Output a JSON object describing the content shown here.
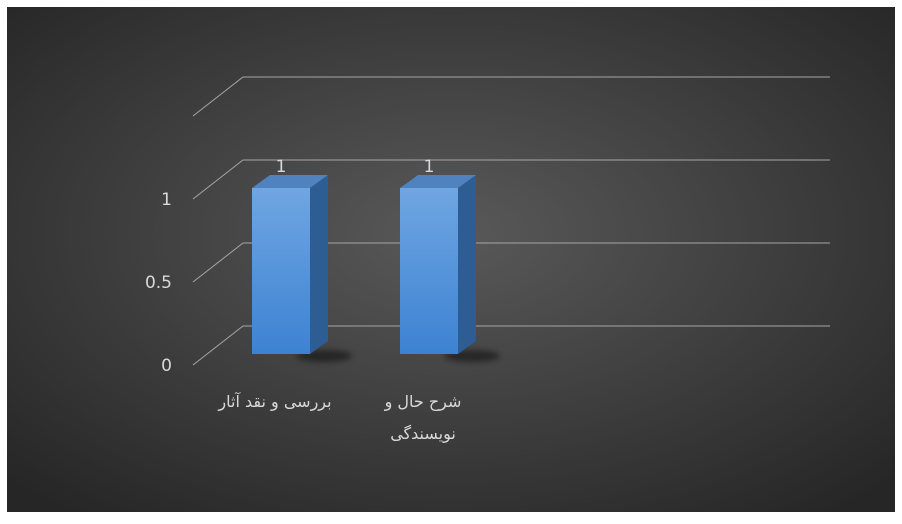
{
  "chart_data": {
    "type": "bar",
    "style": "3d-column",
    "categories": [
      [
        "بررسی و نقد آثار"
      ],
      [
        "شرح حال و",
        "نویسندگی"
      ]
    ],
    "values": [
      1,
      1
    ],
    "data_labels": [
      "1",
      "1"
    ],
    "y_ticks": [
      "0",
      "0.5",
      "1"
    ],
    "ylim": [
      0,
      1.5
    ],
    "grid": true,
    "legend": "none",
    "title": "",
    "xlabel": "",
    "ylabel": "",
    "colors": {
      "background_center": "#595959",
      "background_edge": "#262626",
      "bar_front_top": "#6fa6e2",
      "bar_front_bottom": "#3d82d2",
      "bar_side": "#2e5d93",
      "bar_top": "#4f82be",
      "gridline": "#a6a6a6",
      "text": "#d9d9d9"
    }
  }
}
